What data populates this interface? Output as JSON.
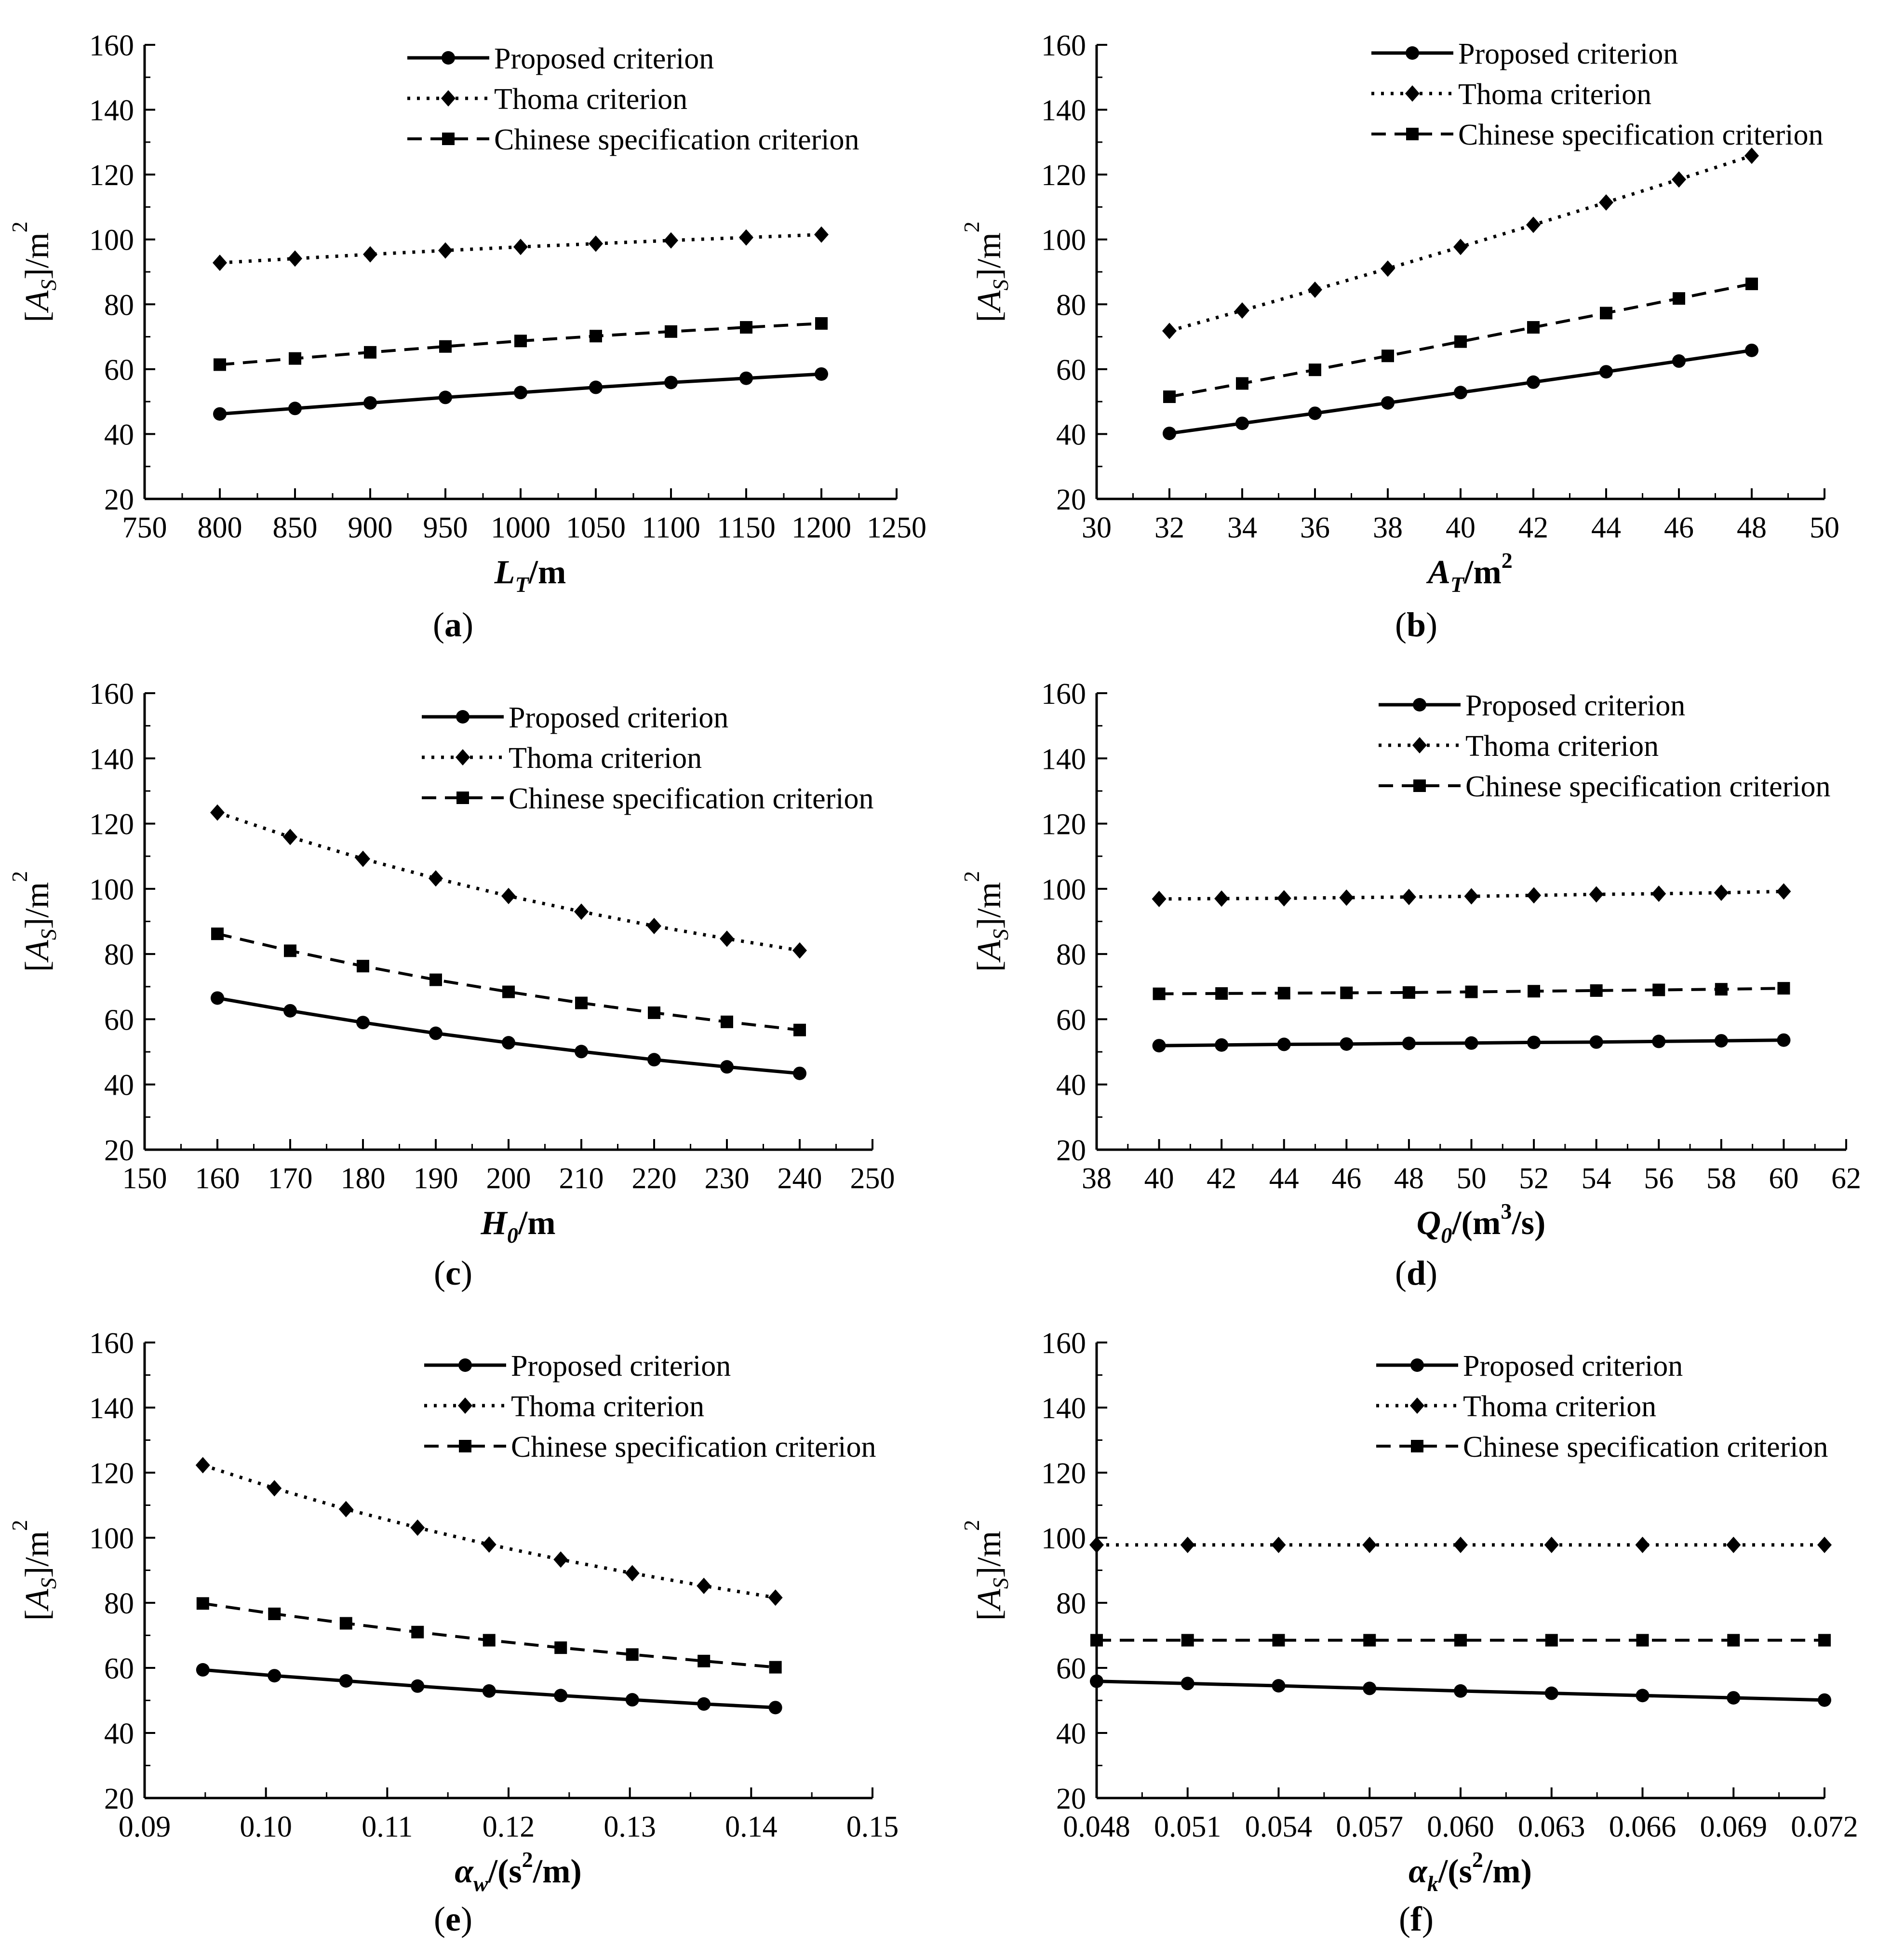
{
  "series_names": [
    "Proposed criterion",
    "Thoma criterion",
    "Chinese specification criterion"
  ],
  "chart_data": [
    {
      "type": "line",
      "panel_label": "(a)",
      "ylabel": "[A_S]/m²",
      "xlabel": "L_T/m",
      "xlim": [
        750,
        1250
      ],
      "ylim": [
        20,
        160
      ],
      "xticks": [
        750,
        800,
        850,
        900,
        950,
        1000,
        1050,
        1100,
        1150,
        1200,
        1250
      ],
      "yticks": [
        20,
        40,
        60,
        80,
        100,
        120,
        140,
        160
      ],
      "xtick_labels": [
        "750",
        "800",
        "850",
        "900",
        "950",
        "1000",
        "1050",
        "1100",
        "1150",
        "1200",
        "1250"
      ],
      "ytick_labels": [
        "20",
        "40",
        "60",
        "80",
        "100",
        "120",
        "140",
        "160"
      ],
      "x": [
        800,
        850,
        900,
        950,
        1000,
        1050,
        1100,
        1150,
        1200
      ],
      "series": [
        {
          "name": "Proposed criterion",
          "values": [
            46.2,
            47.9,
            49.6,
            51.3,
            52.8,
            54.4,
            55.9,
            57.2,
            58.5
          ]
        },
        {
          "name": "Thoma criterion",
          "values": [
            92.8,
            94.1,
            95.4,
            96.6,
            97.7,
            98.7,
            99.7,
            100.6,
            101.5
          ]
        },
        {
          "name": "Chinese specification criterion",
          "values": [
            61.4,
            63.3,
            65.2,
            67.0,
            68.7,
            70.2,
            71.6,
            72.9,
            74.1
          ]
        }
      ],
      "legend": "top"
    },
    {
      "type": "line",
      "panel_label": "(b)",
      "ylabel": "[A_S]/m²",
      "xlabel": "A_T/m²",
      "xlim": [
        30,
        50
      ],
      "ylim": [
        20,
        160
      ],
      "xticks": [
        30,
        32,
        34,
        36,
        38,
        40,
        42,
        44,
        46,
        48,
        50
      ],
      "yticks": [
        20,
        40,
        60,
        80,
        100,
        120,
        140,
        160
      ],
      "xtick_labels": [
        "30",
        "32",
        "34",
        "36",
        "38",
        "40",
        "42",
        "44",
        "46",
        "48",
        "50"
      ],
      "ytick_labels": [
        "20",
        "40",
        "60",
        "80",
        "100",
        "120",
        "140",
        "160"
      ],
      "x": [
        32,
        34,
        36,
        38,
        40,
        42,
        44,
        46,
        48
      ],
      "series": [
        {
          "name": "Proposed criterion",
          "values": [
            40.2,
            43.3,
            46.4,
            49.6,
            52.8,
            56.0,
            59.2,
            62.5,
            65.8
          ]
        },
        {
          "name": "Thoma criterion",
          "values": [
            71.8,
            78.1,
            84.5,
            91.0,
            97.7,
            104.5,
            111.4,
            118.5,
            125.8
          ]
        },
        {
          "name": "Chinese specification criterion",
          "values": [
            51.5,
            55.6,
            59.8,
            64.1,
            68.5,
            72.9,
            77.3,
            81.8,
            86.3
          ]
        }
      ],
      "legend": "top"
    },
    {
      "type": "line",
      "panel_label": "(c)",
      "ylabel": "[A_S]/m²",
      "xlabel": "H_0/m",
      "xlim": [
        150,
        250
      ],
      "ylim": [
        20,
        160
      ],
      "xticks": [
        150,
        160,
        170,
        180,
        190,
        200,
        210,
        220,
        230,
        240,
        250
      ],
      "yticks": [
        20,
        40,
        60,
        80,
        100,
        120,
        140,
        160
      ],
      "xtick_labels": [
        "150",
        "160",
        "170",
        "180",
        "190",
        "200",
        "210",
        "220",
        "230",
        "240",
        "250"
      ],
      "ytick_labels": [
        "20",
        "40",
        "60",
        "80",
        "100",
        "120",
        "140",
        "160"
      ],
      "x": [
        160,
        170,
        180,
        190,
        200,
        210,
        220,
        230,
        240
      ],
      "series": [
        {
          "name": "Proposed criterion",
          "values": [
            66.5,
            62.6,
            59.0,
            55.7,
            52.8,
            50.1,
            47.6,
            45.4,
            43.4
          ]
        },
        {
          "name": "Thoma criterion",
          "values": [
            123.4,
            115.9,
            109.2,
            103.2,
            97.8,
            93.0,
            88.6,
            84.7,
            81.1
          ]
        },
        {
          "name": "Chinese specification criterion",
          "values": [
            86.2,
            81.0,
            76.3,
            72.1,
            68.4,
            65.0,
            62.0,
            59.2,
            56.7
          ]
        }
      ],
      "legend": "top"
    },
    {
      "type": "line",
      "panel_label": "(d)",
      "ylabel": "[A_S]/m²",
      "xlabel": "Q_0/(m³/s)",
      "xlim": [
        38,
        62
      ],
      "ylim": [
        20,
        160
      ],
      "xticks": [
        38,
        40,
        42,
        44,
        46,
        48,
        50,
        52,
        54,
        56,
        58,
        60,
        62
      ],
      "yticks": [
        20,
        40,
        60,
        80,
        100,
        120,
        140,
        160
      ],
      "xtick_labels": [
        "38",
        "40",
        "42",
        "44",
        "46",
        "48",
        "50",
        "52",
        "54",
        "56",
        "58",
        "60",
        "62"
      ],
      "ytick_labels": [
        "20",
        "40",
        "60",
        "80",
        "100",
        "120",
        "140",
        "160"
      ],
      "x": [
        40,
        42,
        44,
        46,
        48,
        50,
        52,
        54,
        56,
        58,
        60
      ],
      "series": [
        {
          "name": "Proposed criterion",
          "values": [
            51.9,
            52.1,
            52.3,
            52.4,
            52.6,
            52.7,
            52.9,
            53.0,
            53.2,
            53.4,
            53.6
          ]
        },
        {
          "name": "Thoma criterion",
          "values": [
            96.9,
            97.0,
            97.1,
            97.3,
            97.5,
            97.7,
            98.0,
            98.3,
            98.5,
            98.8,
            99.2
          ]
        },
        {
          "name": "Chinese specification criterion",
          "values": [
            67.8,
            67.9,
            68.0,
            68.1,
            68.2,
            68.4,
            68.6,
            68.8,
            69.0,
            69.2,
            69.5
          ]
        }
      ],
      "legend": "top"
    },
    {
      "type": "line",
      "panel_label": "(e)",
      "ylabel": "[A_S]/m²",
      "xlabel": "α_w/(s²/m)",
      "xlim": [
        0.09,
        0.15
      ],
      "ylim": [
        20,
        160
      ],
      "xticks": [
        0.09,
        0.1,
        0.11,
        0.12,
        0.13,
        0.14,
        0.15
      ],
      "yticks": [
        20,
        40,
        60,
        80,
        100,
        120,
        140,
        160
      ],
      "xtick_labels": [
        "0.09",
        "0.10",
        "0.11",
        "0.12",
        "0.13",
        "0.14",
        "0.15"
      ],
      "ytick_labels": [
        "20",
        "40",
        "60",
        "80",
        "100",
        "120",
        "140",
        "160"
      ],
      "x": [
        0.0948,
        0.1007,
        0.1066,
        0.1125,
        0.1184,
        0.1243,
        0.1302,
        0.1361,
        0.142
      ],
      "series": [
        {
          "name": "Proposed criterion",
          "values": [
            59.4,
            57.6,
            56.0,
            54.4,
            52.9,
            51.5,
            50.2,
            48.9,
            47.8
          ]
        },
        {
          "name": "Thoma criterion",
          "values": [
            122.3,
            115.2,
            108.8,
            103.1,
            97.9,
            93.3,
            89.1,
            85.2,
            81.6
          ]
        },
        {
          "name": "Chinese specification criterion",
          "values": [
            79.8,
            76.6,
            73.7,
            71.0,
            68.5,
            66.2,
            64.1,
            62.1,
            60.2
          ]
        }
      ],
      "legend": "top"
    },
    {
      "type": "line",
      "panel_label": "(f)",
      "ylabel": "[A_S]/m²",
      "xlabel": "α_k/(s²/m)",
      "xlim": [
        0.048,
        0.072
      ],
      "ylim": [
        20,
        160
      ],
      "xticks": [
        0.048,
        0.051,
        0.054,
        0.057,
        0.06,
        0.063,
        0.066,
        0.069,
        0.072
      ],
      "yticks": [
        20,
        40,
        60,
        80,
        100,
        120,
        140,
        160
      ],
      "xtick_labels": [
        "0.048",
        "0.051",
        "0.054",
        "0.057",
        "0.060",
        "0.063",
        "0.066",
        "0.069",
        "0.072"
      ],
      "ytick_labels": [
        "20",
        "40",
        "60",
        "80",
        "100",
        "120",
        "140",
        "160"
      ],
      "x": [
        0.048,
        0.051,
        0.054,
        0.057,
        0.06,
        0.063,
        0.066,
        0.069,
        0.072
      ],
      "series": [
        {
          "name": "Proposed criterion",
          "values": [
            55.9,
            55.2,
            54.5,
            53.7,
            52.9,
            52.2,
            51.5,
            50.8,
            50.1
          ]
        },
        {
          "name": "Thoma criterion",
          "values": [
            97.8,
            97.8,
            97.8,
            97.8,
            97.8,
            97.8,
            97.8,
            97.8,
            97.8
          ]
        },
        {
          "name": "Chinese specification criterion",
          "values": [
            68.5,
            68.5,
            68.5,
            68.5,
            68.5,
            68.5,
            68.5,
            68.5,
            68.5
          ]
        }
      ],
      "legend": "top"
    }
  ]
}
